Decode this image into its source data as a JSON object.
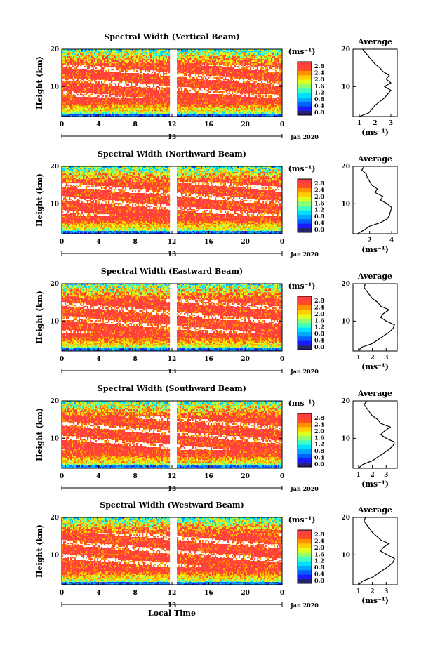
{
  "x_label": "Local Time",
  "panels": [
    {
      "title": "Spectral Width (Vertical Beam)",
      "avg_xticks": [
        "1",
        "2",
        "3"
      ],
      "avg_xrange": [
        0.6,
        3.4
      ]
    },
    {
      "title": "Spectral Width (Northward Beam)",
      "avg_xticks": [
        "2",
        "4"
      ],
      "avg_xrange": [
        0.5,
        4.5
      ]
    },
    {
      "title": "Spectral Width (Eastward Beam)",
      "avg_xticks": [
        "1",
        "2",
        "3"
      ],
      "avg_xrange": [
        0.6,
        3.8
      ]
    },
    {
      "title": "Spectral Width (Southward Beam)",
      "avg_xticks": [
        "1",
        "2",
        "3"
      ],
      "avg_xrange": [
        0.6,
        3.8
      ]
    },
    {
      "title": "Spectral Width (Westward Beam)",
      "avg_xticks": [
        "1",
        "2",
        "3"
      ],
      "avg_xrange": [
        0.6,
        3.8
      ]
    }
  ],
  "common": {
    "ylabel": "Height (km)",
    "yticks": [
      "10",
      "20"
    ],
    "xticks": [
      "0",
      "4",
      "8",
      "12",
      "16",
      "20",
      "0"
    ],
    "date_day": "13",
    "date_label": "Jan 2020",
    "avg_title": "Average",
    "avg_unit": "(ms⁻¹)",
    "colorbar_unit": "(ms⁻¹)",
    "colorbar_ticks": [
      "0.0",
      "0.4",
      "0.8",
      "1.2",
      "1.6",
      "2.0",
      "2.4",
      "2.8"
    ]
  },
  "colors": {
    "jet": [
      "#24246e",
      "#1a1aff",
      "#0060ff",
      "#00a8ff",
      "#00e0ff",
      "#40ffc0",
      "#90ff70",
      "#e0ff20",
      "#ffd000",
      "#ff9000",
      "#ff4a2a",
      "#ff4040"
    ],
    "saturated": "#ff4040"
  },
  "chart_data": {
    "type": "heatmap",
    "quantity": "Spectral Width",
    "unit": "ms⁻¹",
    "x_axis": "Local Time (h), 0 to 24, 13 Jan 2020",
    "y_axis": "Height (km), ~2 to 20",
    "colorbar_range": [
      0.0,
      3.0
    ],
    "data_gap_hours": [
      11.8,
      12.6
    ],
    "average_profiles": [
      {
        "beam": "Vertical",
        "height_km": [
          2,
          3,
          4,
          5,
          6,
          7,
          8,
          9,
          10,
          11,
          12,
          13,
          14,
          15,
          16,
          17,
          18,
          19,
          20
        ],
        "width_ms": [
          1.0,
          1.6,
          1.8,
          2.0,
          2.3,
          2.6,
          2.8,
          3.0,
          2.6,
          3.0,
          2.7,
          2.9,
          2.5,
          2.3,
          2.0,
          1.8,
          1.6,
          1.4,
          1.2
        ]
      },
      {
        "beam": "Northward",
        "height_km": [
          2,
          3,
          4,
          5,
          6,
          7,
          8,
          9,
          10,
          11,
          12,
          13,
          14,
          15,
          16,
          17,
          18,
          19,
          20
        ],
        "width_ms": [
          0.9,
          1.5,
          2.0,
          3.0,
          3.6,
          3.8,
          3.9,
          4.0,
          3.6,
          3.0,
          3.2,
          2.5,
          2.7,
          2.2,
          2.0,
          1.8,
          1.7,
          1.3,
          1.5
        ]
      },
      {
        "beam": "Eastward",
        "height_km": [
          2,
          3,
          4,
          5,
          6,
          7,
          8,
          9,
          10,
          11,
          12,
          13,
          14,
          15,
          16,
          17,
          18,
          19,
          20
        ],
        "width_ms": [
          1.0,
          1.2,
          2.0,
          2.4,
          2.8,
          3.2,
          3.5,
          3.6,
          3.0,
          2.6,
          2.8,
          3.2,
          2.6,
          2.4,
          2.0,
          1.8,
          1.6,
          1.4,
          1.5
        ]
      },
      {
        "beam": "Southward",
        "height_km": [
          2,
          3,
          4,
          5,
          6,
          7,
          8,
          9,
          10,
          11,
          12,
          13,
          14,
          15,
          16,
          17,
          18,
          19,
          20
        ],
        "width_ms": [
          1.0,
          1.3,
          2.0,
          2.4,
          2.8,
          3.2,
          3.5,
          3.6,
          3.0,
          2.6,
          2.9,
          3.3,
          2.6,
          2.4,
          2.0,
          1.8,
          1.6,
          1.4,
          1.6
        ]
      },
      {
        "beam": "Westward",
        "height_km": [
          2,
          3,
          4,
          5,
          6,
          7,
          8,
          9,
          10,
          11,
          12,
          13,
          14,
          15,
          16,
          17,
          18,
          19,
          20
        ],
        "width_ms": [
          1.0,
          1.3,
          2.0,
          2.4,
          2.8,
          3.2,
          3.5,
          3.6,
          3.1,
          2.6,
          2.8,
          3.2,
          2.6,
          2.3,
          2.0,
          1.8,
          1.6,
          1.4,
          1.5
        ]
      }
    ]
  }
}
